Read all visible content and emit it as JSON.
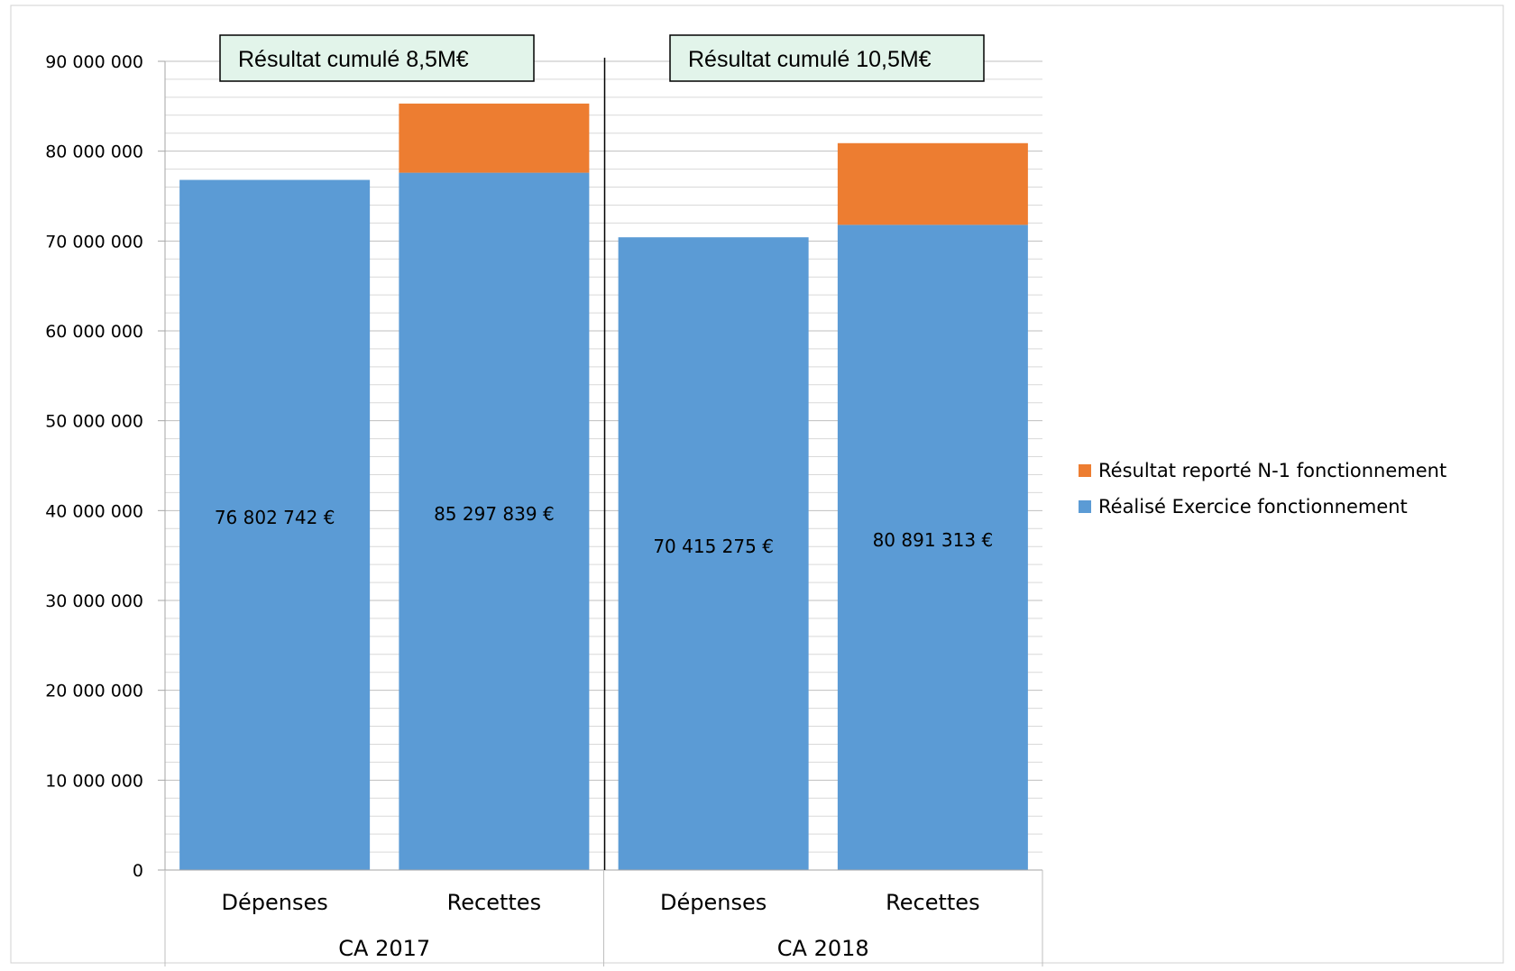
{
  "chart_data": {
    "type": "bar",
    "stacked": true,
    "groups": [
      {
        "label": "CA 2017",
        "categories": [
          "Dépenses",
          "Recettes"
        ]
      },
      {
        "label": "CA 2018",
        "categories": [
          "Dépenses",
          "Recettes"
        ]
      }
    ],
    "series": [
      {
        "name": "Réalisé Exercice fonctionnement",
        "color": "#5B9BD5",
        "values": [
          76802742,
          77600000,
          70415275,
          71800000
        ]
      },
      {
        "name": "Résultat reporté N-1 fonctionnement",
        "color": "#ED7D31",
        "values": [
          0,
          7697839,
          0,
          9091313
        ]
      }
    ],
    "data_labels": [
      "76 802 742 €",
      "85 297 839 €",
      "70 415 275 €",
      "80 891 313 €"
    ],
    "y_ticks": [
      "0",
      "10 000 000",
      "20 000 000",
      "30 000 000",
      "40 000 000",
      "50 000 000",
      "60 000 000",
      "70 000 000",
      "80 000 000",
      "90 000 000"
    ],
    "ylim": [
      0,
      90000000
    ],
    "major_step": 10000000,
    "minor_step": 2000000,
    "grid": true,
    "legend_position": "right",
    "annotations": [
      "Résultat cumulé 8,5M€",
      "Résultat cumulé 10,5M€"
    ],
    "annotation_fill": "#E2F4EA"
  }
}
